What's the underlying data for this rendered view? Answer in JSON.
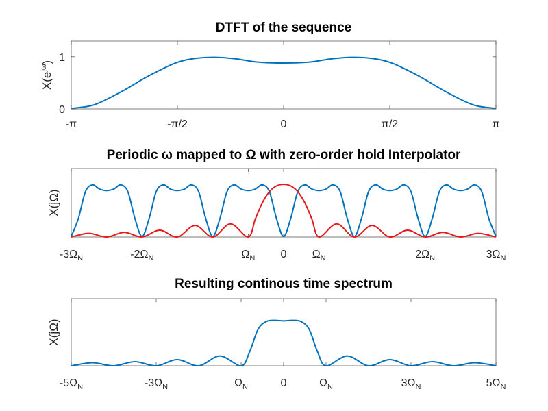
{
  "chart_data": [
    {
      "type": "line",
      "title": "DTFT of the sequence",
      "ylabel": {
        "base": "X(e",
        "sup": "jω",
        "close": ")"
      },
      "xlim": [
        -3.14159,
        3.14159
      ],
      "ylim": [
        0,
        1.3
      ],
      "yticks": [
        {
          "v": 0,
          "label": "0"
        },
        {
          "v": 1,
          "label": "1"
        }
      ],
      "xticks": [
        {
          "v": -3.14159,
          "label": "-π",
          "sub": ""
        },
        {
          "v": -1.5708,
          "label": "-π/2",
          "sub": ""
        },
        {
          "v": 0,
          "label": "0",
          "sub": ""
        },
        {
          "v": 1.5708,
          "label": "π/2",
          "sub": ""
        },
        {
          "v": 3.14159,
          "label": "π",
          "sub": ""
        }
      ],
      "series": [
        {
          "color": "#0072bd",
          "x": [
            -3.1416,
            -2.8,
            -2.4,
            -2.0,
            -1.6,
            -1.3,
            -1.0,
            -0.7,
            -0.4,
            0,
            0.4,
            0.7,
            1.0,
            1.3,
            1.6,
            2.0,
            2.4,
            2.8,
            3.1416
          ],
          "y": [
            0.01,
            0.08,
            0.33,
            0.63,
            0.88,
            0.97,
            0.99,
            0.96,
            0.9,
            0.88,
            0.9,
            0.96,
            0.99,
            0.97,
            0.88,
            0.63,
            0.33,
            0.08,
            0.01
          ]
        }
      ]
    },
    {
      "type": "line",
      "title": "Periodic ω mapped to Ω with zero-order hold Interpolator",
      "ylabel": {
        "base": "X(jΩ)",
        "sup": "",
        "close": ""
      },
      "xlim": [
        -3,
        3
      ],
      "ylim": [
        0,
        1.3
      ],
      "yticks": [],
      "xticks": [
        {
          "v": -3,
          "label": "-3Ω",
          "sub": "N"
        },
        {
          "v": -2,
          "label": "-2Ω",
          "sub": "N"
        },
        {
          "v": -0.5,
          "label": "Ω",
          "sub": "N"
        },
        {
          "v": 0,
          "label": "0",
          "sub": ""
        },
        {
          "v": 0.5,
          "label": "Ω",
          "sub": "N"
        },
        {
          "v": 2,
          "label": "2Ω",
          "sub": "N"
        },
        {
          "v": 3,
          "label": "3Ω",
          "sub": "N"
        }
      ],
      "series": [
        {
          "color": "#0072bd",
          "x": [
            -3.0,
            -2.9,
            -2.8,
            -2.7,
            -2.6,
            -2.5,
            -2.4,
            -2.3,
            -2.2,
            -2.1,
            -2.0,
            -1.9,
            -1.8,
            -1.7,
            -1.6,
            -1.5,
            -1.4,
            -1.3,
            -1.2,
            -1.1,
            -1.0,
            -0.9,
            -0.8,
            -0.7,
            -0.6,
            -0.5,
            -0.4,
            -0.3,
            -0.2,
            -0.1,
            0.0,
            0.1,
            0.2,
            0.3,
            0.4,
            0.5,
            0.6,
            0.7,
            0.8,
            0.9,
            1.0,
            1.1,
            1.2,
            1.3,
            1.4,
            1.5,
            1.6,
            1.7,
            1.8,
            1.9,
            2.0,
            2.1,
            2.2,
            2.3,
            2.4,
            2.5,
            2.6,
            2.7,
            2.8,
            2.9,
            3.0
          ],
          "y": [
            0.01,
            0.35,
            0.86,
            0.99,
            0.91,
            0.88,
            0.91,
            0.99,
            0.86,
            0.35,
            0.01,
            0.35,
            0.86,
            0.99,
            0.91,
            0.88,
            0.91,
            0.99,
            0.86,
            0.35,
            0.01,
            0.35,
            0.86,
            0.99,
            0.91,
            0.88,
            0.91,
            0.99,
            0.86,
            0.35,
            0.01,
            0.35,
            0.86,
            0.99,
            0.91,
            0.88,
            0.91,
            0.99,
            0.86,
            0.35,
            0.01,
            0.35,
            0.86,
            0.99,
            0.91,
            0.88,
            0.91,
            0.99,
            0.86,
            0.35,
            0.01,
            0.35,
            0.86,
            0.99,
            0.91,
            0.88,
            0.91,
            0.99,
            0.86,
            0.35,
            0.01
          ]
        },
        {
          "color": "#e41a1c",
          "x": [
            -3.0,
            -2.75,
            -2.5,
            -2.25,
            -2.0,
            -1.75,
            -1.5,
            -1.25,
            -1.0,
            -0.75,
            -0.5,
            -0.4,
            -0.3,
            -0.2,
            -0.1,
            0.0,
            0.1,
            0.2,
            0.3,
            0.4,
            0.5,
            0.75,
            1.0,
            1.25,
            1.5,
            1.75,
            2.0,
            2.25,
            2.5,
            2.75,
            3.0
          ],
          "y": [
            0.0,
            0.07,
            0.0,
            0.09,
            0.0,
            0.13,
            0.0,
            0.22,
            0.0,
            0.25,
            0.0,
            0.34,
            0.65,
            0.86,
            0.97,
            1.0,
            0.97,
            0.86,
            0.65,
            0.34,
            0.0,
            0.25,
            0.0,
            0.22,
            0.0,
            0.13,
            0.0,
            0.09,
            0.0,
            0.07,
            0.0
          ]
        }
      ]
    },
    {
      "type": "line",
      "title": "Resulting continous time spectrum",
      "ylabel": {
        "base": "X(jΩ)",
        "sup": "",
        "close": ""
      },
      "xlim": [
        -5,
        5
      ],
      "ylim": [
        0,
        1.3
      ],
      "yticks": [],
      "xticks": [
        {
          "v": -5,
          "label": "-5Ω",
          "sub": "N"
        },
        {
          "v": -3,
          "label": "-3Ω",
          "sub": "N"
        },
        {
          "v": -1,
          "label": "Ω",
          "sub": "N"
        },
        {
          "v": 0,
          "label": "0",
          "sub": ""
        },
        {
          "v": 1,
          "label": "Ω",
          "sub": "N"
        },
        {
          "v": 3,
          "label": "3Ω",
          "sub": "N"
        },
        {
          "v": 5,
          "label": "5Ω",
          "sub": "N"
        }
      ],
      "series": [
        {
          "color": "#0072bd",
          "x": [
            -5.0,
            -4.5,
            -4.0,
            -3.5,
            -3.0,
            -2.5,
            -2.0,
            -1.5,
            -1.0,
            -0.8,
            -0.6,
            -0.4,
            -0.2,
            0.0,
            0.2,
            0.4,
            0.6,
            0.8,
            1.0,
            1.5,
            2.0,
            2.5,
            3.0,
            3.5,
            4.0,
            4.5,
            5.0
          ],
          "y": [
            0.0,
            0.06,
            0.0,
            0.08,
            0.0,
            0.12,
            0.0,
            0.19,
            0.0,
            0.27,
            0.71,
            0.86,
            0.88,
            0.87,
            0.88,
            0.86,
            0.71,
            0.27,
            0.0,
            0.19,
            0.0,
            0.12,
            0.0,
            0.08,
            0.0,
            0.06,
            0.0
          ]
        }
      ]
    }
  ]
}
